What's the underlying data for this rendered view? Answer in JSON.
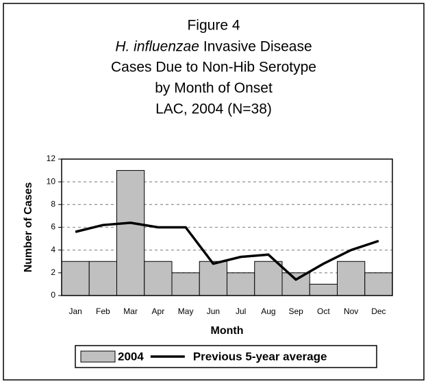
{
  "chart_data": {
    "type": "bar",
    "title": [
      "Figure 4",
      [
        "H. influenzae",
        "Invasive Disease"
      ],
      "Cases Due to Non-Hib Serotype",
      "by Month of Onset",
      "LAC, 2004 (N=38)"
    ],
    "x_label": "Month",
    "y_label": "Number of Cases",
    "categories": [
      "Jan",
      "Feb",
      "Mar",
      "Apr",
      "May",
      "Jun",
      "Jul",
      "Aug",
      "Sep",
      "Oct",
      "Nov",
      "Dec"
    ],
    "series": [
      {
        "name": "2004",
        "type": "bar",
        "color": "#c0c0c0",
        "values": [
          3,
          3,
          11,
          3,
          2,
          3,
          2,
          3,
          2,
          1,
          3,
          2
        ]
      },
      {
        "name": "Previous 5-year average",
        "type": "line",
        "color": "#000000",
        "values": [
          5.6,
          6.2,
          6.4,
          6.0,
          6.0,
          2.8,
          3.4,
          3.6,
          1.4,
          2.8,
          4.0,
          4.8
        ]
      }
    ],
    "ylim": [
      0,
      12
    ],
    "yticks": [
      0,
      2,
      4,
      6,
      8,
      10,
      12
    ],
    "grid": true,
    "legend": "bottom"
  }
}
